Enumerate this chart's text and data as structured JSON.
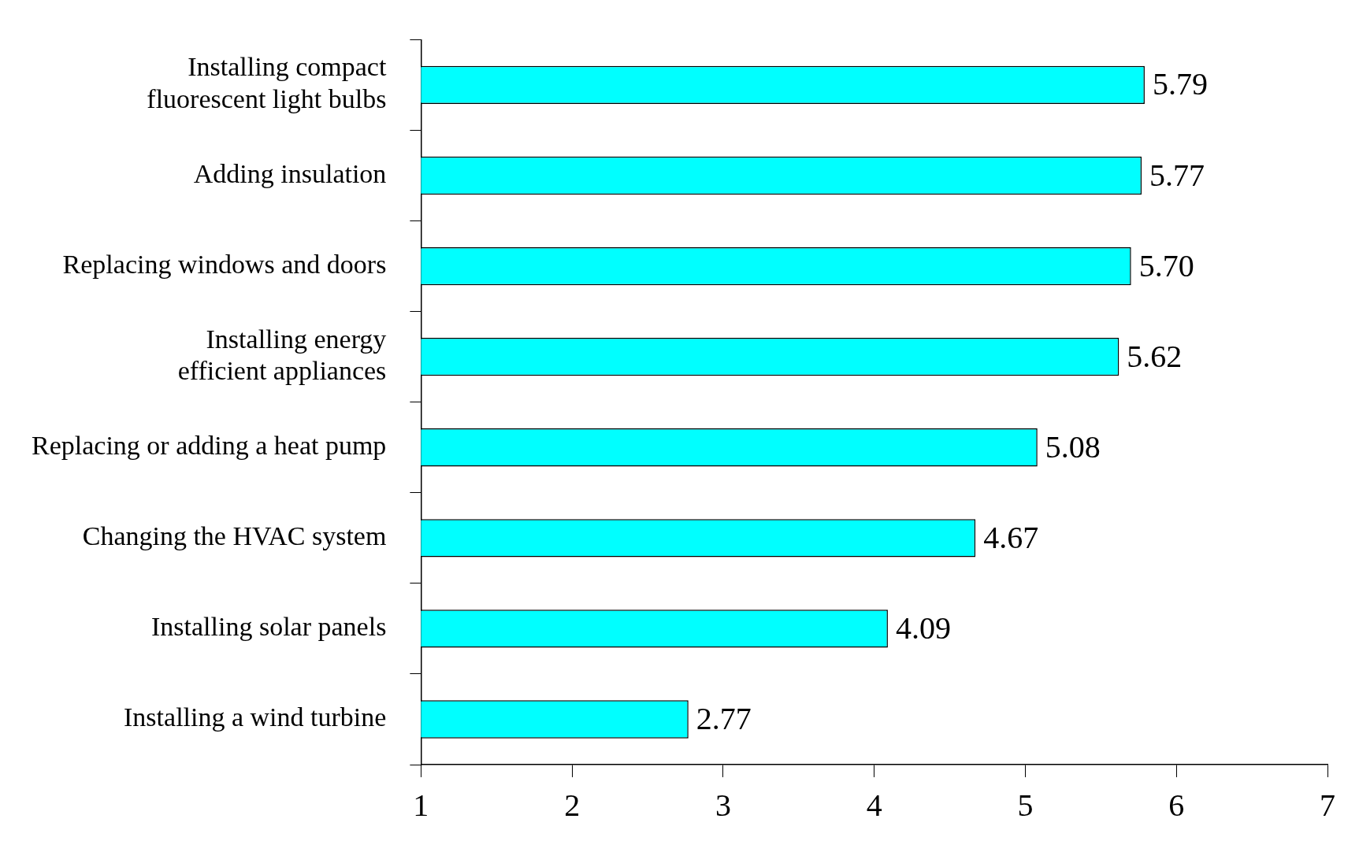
{
  "chart_data": {
    "type": "bar",
    "orientation": "horizontal",
    "categories": [
      "Installing compact fluorescent light bulbs",
      "Adding insulation",
      "Replacing windows and doors",
      "Installing energy efficient appliances",
      "Replacing or adding a heat pump",
      "Changing the HVAC system",
      "Installing solar panels",
      "Installing a wind turbine"
    ],
    "values": [
      5.79,
      5.77,
      5.7,
      5.62,
      5.08,
      4.67,
      4.09,
      2.77
    ],
    "value_labels": [
      "5.79",
      "5.77",
      "5.70",
      "5.62",
      "5.08",
      "4.67",
      "4.09",
      "2.77"
    ],
    "color": "#00ffff",
    "xlim": [
      1,
      7
    ],
    "xticks": [
      1,
      2,
      3,
      4,
      5,
      6,
      7
    ]
  }
}
